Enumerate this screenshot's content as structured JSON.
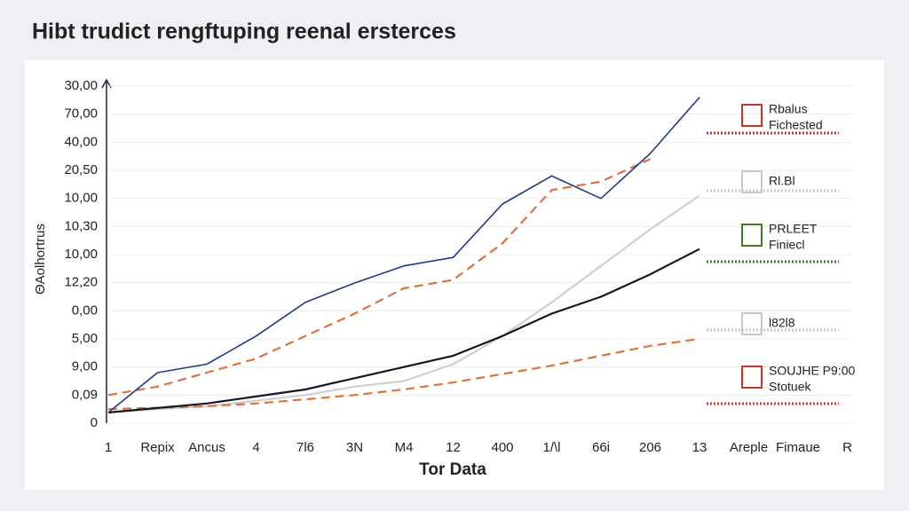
{
  "chart_data": {
    "type": "line",
    "title": "Hibt trudict rengftuping reenal ersterces",
    "y_label": "ΘAolhortrus",
    "x_label": "Tor Data",
    "categories": [
      "1",
      "Repix",
      "Ancus",
      "4",
      "7l6",
      "3N",
      "M4",
      "12",
      "400",
      "1/\\l",
      "66i",
      "206",
      "13",
      "Areple",
      "Fimaue",
      "R"
    ],
    "ylim": [
      0,
      12
    ],
    "yticks": [
      {
        "value": 0,
        "label": "0"
      },
      {
        "value": 1,
        "label": "0,09"
      },
      {
        "value": 2,
        "label": "9,00"
      },
      {
        "value": 3,
        "label": "5,00"
      },
      {
        "value": 4,
        "label": "0,00"
      },
      {
        "value": 5,
        "label": "12,20"
      },
      {
        "value": 6,
        "label": "10,00"
      },
      {
        "value": 7,
        "label": "10,30"
      },
      {
        "value": 8,
        "label": "10,00"
      },
      {
        "value": 9,
        "label": "20,50"
      },
      {
        "value": 10,
        "label": "40,00"
      },
      {
        "value": 11,
        "label": "70,00"
      },
      {
        "value": 12,
        "label": "30,00"
      }
    ],
    "grid": true,
    "series": [
      {
        "color": "#cfcfcf",
        "style": "solid",
        "values": [
          0.38,
          0.5,
          0.6,
          0.8,
          1.0,
          1.3,
          1.5,
          2.1,
          3.1,
          4.3,
          5.6,
          6.9,
          8.1,
          null,
          null,
          null
        ]
      },
      {
        "color": "#e07040",
        "style": "dashed",
        "values": [
          0.5,
          0.55,
          0.6,
          0.7,
          0.85,
          1.0,
          1.2,
          1.45,
          1.75,
          2.05,
          2.4,
          2.75,
          3.0,
          null,
          null,
          null
        ]
      },
      {
        "color": "#111827",
        "style": "solid",
        "values": [
          0.38,
          0.54,
          0.7,
          0.95,
          1.2,
          1.6,
          2.0,
          2.4,
          3.1,
          3.9,
          4.5,
          5.3,
          6.2,
          null,
          null,
          null
        ]
      },
      {
        "color": "#e07040",
        "style": "dashed",
        "values": [
          1.0,
          1.3,
          1.8,
          2.3,
          3.1,
          3.9,
          4.8,
          5.1,
          6.4,
          8.3,
          8.6,
          9.4,
          null,
          null,
          null,
          null
        ]
      },
      {
        "color": "#1f3a8a",
        "style": "jagged",
        "values": [
          0.38,
          1.8,
          2.1,
          3.1,
          4.3,
          4.99,
          5.6,
          5.9,
          7.8,
          8.8,
          8.0,
          9.6,
          11.6,
          null,
          null,
          null
        ]
      }
    ],
    "annotations": [
      {
        "color": "#c0392b",
        "lines": [
          "Rbalus",
          "Fichested"
        ]
      },
      {
        "color": "#c8c8c8",
        "lines": [
          "Rl.Bl"
        ]
      },
      {
        "color": "#3a7d1e",
        "lines": [
          "PRLEET",
          "Finiecl"
        ]
      },
      {
        "color": "#c8c8c8",
        "lines": [
          "l82l8"
        ]
      },
      {
        "color": "#c0392b",
        "lines": [
          "SOUJHE P9:00",
          "Stotuek"
        ]
      }
    ]
  }
}
